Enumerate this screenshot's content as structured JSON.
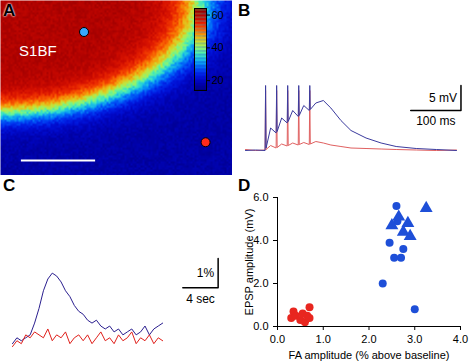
{
  "chart_data": [
    {
      "type": "image",
      "title": "A",
      "annotations": [
        "S1BF"
      ],
      "colorbar_lim": [
        14,
        64
      ],
      "colorbar_ticks": [
        20,
        40,
        60
      ]
    },
    {
      "type": "line",
      "title": "B",
      "tick_labels": false,
      "x": [
        0,
        20,
        39,
        40,
        41,
        50,
        61,
        62,
        63,
        72,
        83,
        84,
        85,
        94,
        105,
        106,
        107,
        116,
        127,
        128,
        129,
        140,
        155,
        170,
        190,
        210,
        240,
        270,
        300,
        340,
        380,
        420
      ],
      "series": [
        {
          "color": "#e06060",
          "values": [
            0.2,
            0,
            0.1,
            12,
            0.2,
            1,
            0.5,
            12,
            0.6,
            1.3,
            0.9,
            12,
            1,
            1.5,
            1.1,
            12,
            1.2,
            1.6,
            1.2,
            12,
            1.3,
            1.8,
            1.5,
            1.1,
            0.8,
            0.5,
            0.4,
            0.3,
            0.2,
            0.1,
            0,
            0.1
          ]
        },
        {
          "color": "#3b3b9e",
          "values": [
            0,
            0.1,
            0,
            13,
            0.5,
            4.5,
            3.5,
            13,
            3.8,
            6.5,
            5.5,
            13,
            5.8,
            8,
            6.8,
            13,
            7,
            9,
            8,
            13,
            8.2,
            9.5,
            10,
            8.5,
            6,
            4,
            2.5,
            1.5,
            0.8,
            0.4,
            0.2,
            0
          ]
        }
      ],
      "xlim": [
        0,
        440
      ],
      "ylim": [
        -2,
        18
      ],
      "scale_bars": {
        "x": 100,
        "x_label": "100 ms",
        "y": 5,
        "y_label": "5 mV"
      }
    },
    {
      "type": "line",
      "title": "C",
      "tick_labels": false,
      "x": [
        0,
        0.5,
        1,
        1.5,
        2,
        2.5,
        3,
        3.5,
        4,
        4.5,
        5,
        5.5,
        6,
        6.5,
        7,
        7.5,
        8,
        8.5,
        9,
        9.5,
        10,
        10.5,
        11,
        11.5,
        12,
        12.5,
        13,
        13.5,
        14,
        14.5,
        15,
        15.5,
        16,
        16.5,
        17
      ],
      "series": [
        {
          "color": "#2b1f8f",
          "values": [
            0.3,
            0.5,
            0.4,
            0.5,
            0.6,
            1.0,
            1.5,
            2.1,
            2.5,
            2.7,
            2.6,
            2.4,
            2.1,
            1.9,
            1.6,
            1.4,
            1.3,
            1.1,
            1.0,
            1.1,
            0.9,
            0.8,
            0.9,
            0.7,
            0.8,
            0.6,
            0.7,
            0.8,
            0.6,
            0.7,
            0.9,
            0.6,
            0.8,
            0.9,
            1.0
          ]
        },
        {
          "color": "#e0201b",
          "values": [
            0.2,
            0.4,
            0.3,
            0.6,
            0.5,
            0.7,
            0.6,
            0.5,
            0.8,
            0.4,
            0.6,
            0.5,
            0.7,
            0.3,
            0.5,
            0.6,
            0.4,
            0.6,
            0.3,
            0.5,
            0.7,
            0.4,
            0.5,
            0.3,
            0.6,
            0.4,
            0.5,
            0.7,
            0.3,
            0.5,
            0.4,
            0.6,
            0.3,
            0.5,
            0.4
          ]
        }
      ],
      "xlim": [
        0,
        24
      ],
      "ylim": [
        0,
        5
      ],
      "scale_bars": {
        "x": 4,
        "x_label": "4 sec",
        "y": 1,
        "y_label": "1%"
      }
    },
    {
      "type": "scatter",
      "title": "D",
      "x_label": "FA amplitude (% above baseline)",
      "y_label": "EPSP amplitude (mV)",
      "series": [
        {
          "color": "#e8261f",
          "marker": "circle",
          "x": [
            0.3,
            0.35,
            0.4,
            0.5,
            0.55,
            0.6,
            0.65,
            0.7,
            0.7
          ],
          "values": [
            0.4,
            0.7,
            0.5,
            0.3,
            0.6,
            0.2,
            0.5,
            0.9,
            0.4
          ]
        },
        {
          "color": "#1e4fd8",
          "marker": "circle",
          "x": [
            2.3,
            2.45,
            2.55,
            2.6,
            2.62,
            2.7,
            2.75,
            3.0
          ],
          "values": [
            2.0,
            3.9,
            3.2,
            5.6,
            4.9,
            3.2,
            3.6,
            0.8
          ]
        },
        {
          "color": "#1e4fd8",
          "marker": "triangle",
          "x": [
            2.5,
            2.65,
            2.75,
            2.85,
            2.9,
            3.25
          ],
          "values": [
            4.7,
            5.1,
            4.4,
            4.8,
            4.2,
            5.5
          ]
        }
      ],
      "xlim": [
        0,
        4
      ],
      "xticks": [
        0,
        1,
        2,
        3,
        4
      ],
      "ylim": [
        0,
        6
      ],
      "yticks": [
        0,
        2,
        4,
        6
      ]
    }
  ]
}
